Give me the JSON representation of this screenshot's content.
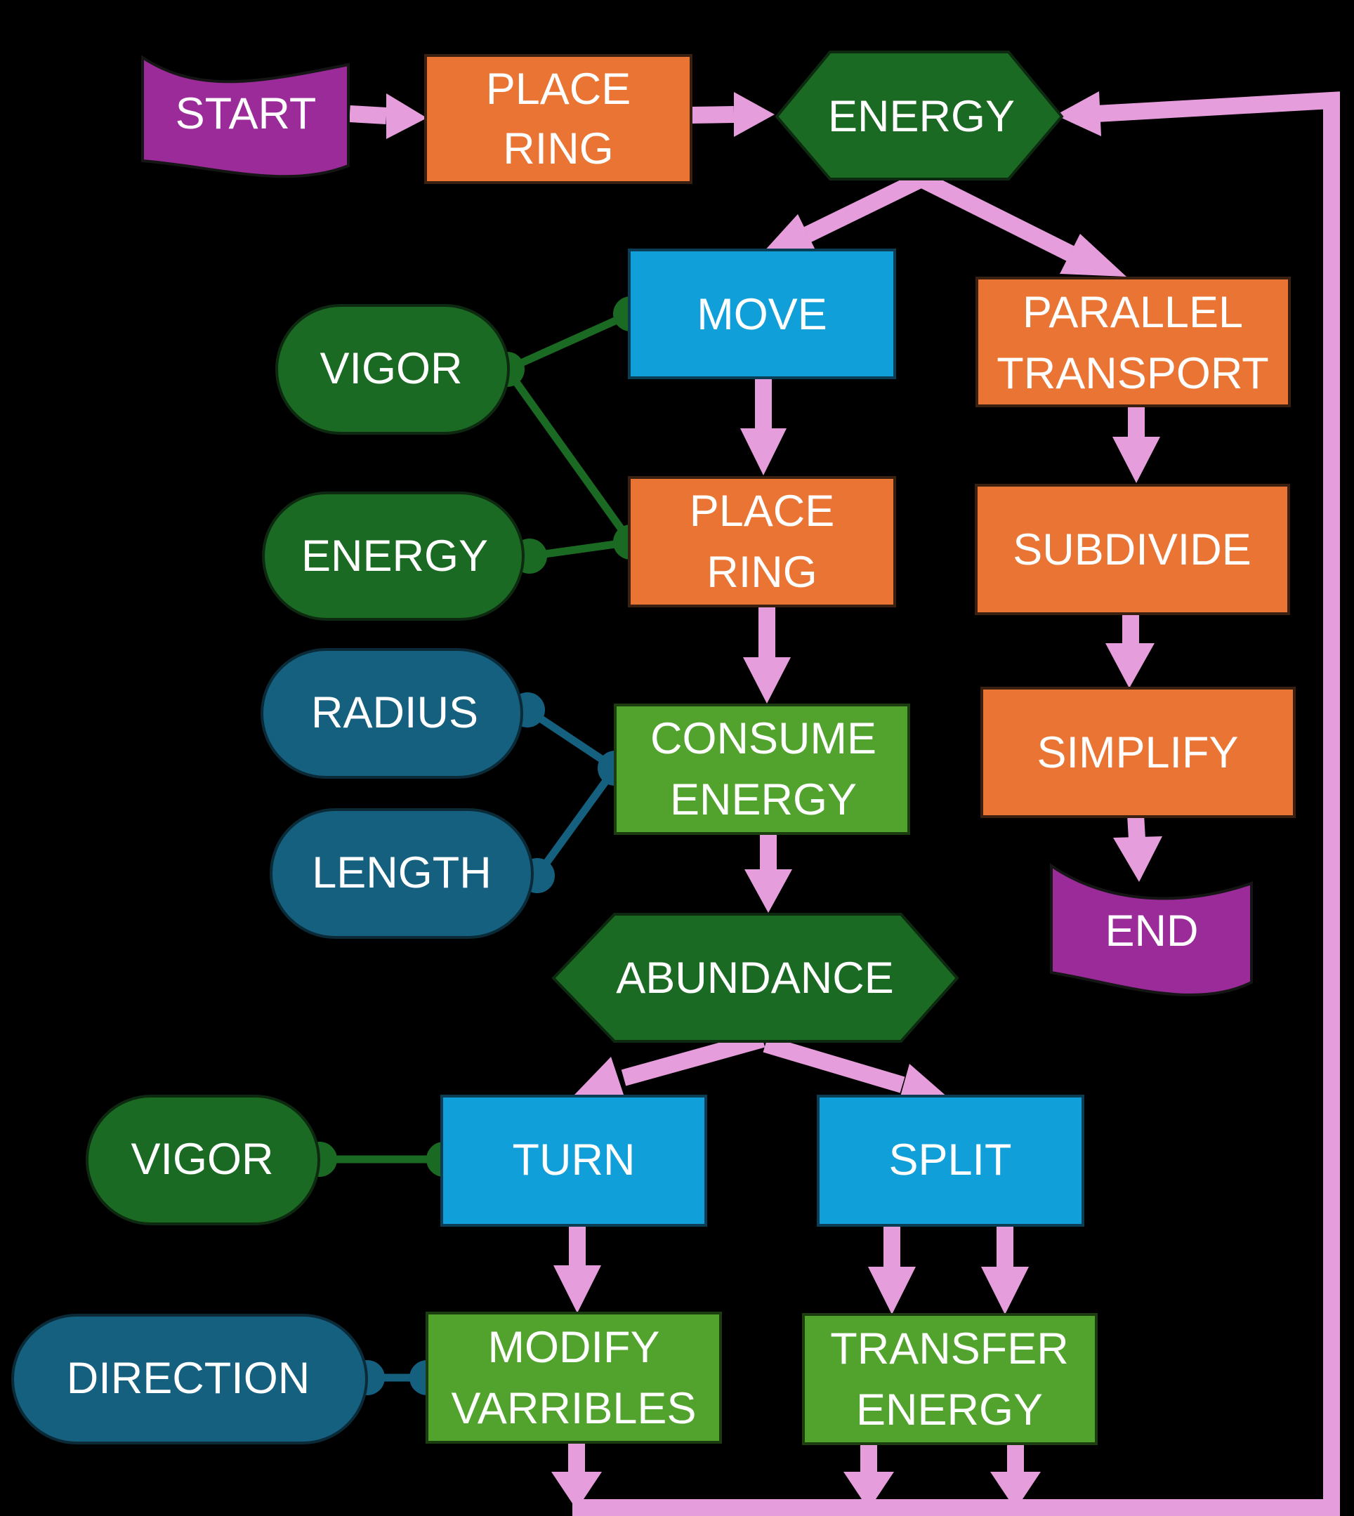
{
  "colors": {
    "background": "#000000",
    "terminator": "#9a2b98",
    "orange_process": "#e97433",
    "dark_green": "#1b6a23",
    "blue_process": "#109fd8",
    "light_green": "#52a32e",
    "teal_param": "#15607f",
    "arrow": "#e59ddc",
    "text": "#ffffff"
  },
  "nodes": {
    "start": "START",
    "place_ring_top": [
      "PLACE",
      "RING"
    ],
    "energy_decision": "ENERGY",
    "move": "MOVE",
    "parallel_transport": [
      "PARALLEL",
      "TRANSPORT"
    ],
    "vigor_move": "VIGOR",
    "place_ring_mid": [
      "PLACE",
      "RING"
    ],
    "subdivide": "SUBDIVIDE",
    "energy_param": "ENERGY",
    "radius": "RADIUS",
    "consume_energy": [
      "CONSUME",
      "ENERGY"
    ],
    "simplify": "SIMPLIFY",
    "length": "LENGTH",
    "end": "END",
    "abundance": "ABUNDANCE",
    "vigor_turn": "VIGOR",
    "turn": "TURN",
    "split": "SPLIT",
    "direction": "DIRECTION",
    "modify_variables": [
      "MODIFY",
      "VARRIBLES"
    ],
    "transfer_energy": [
      "TRANSFER",
      "ENERGY"
    ]
  }
}
